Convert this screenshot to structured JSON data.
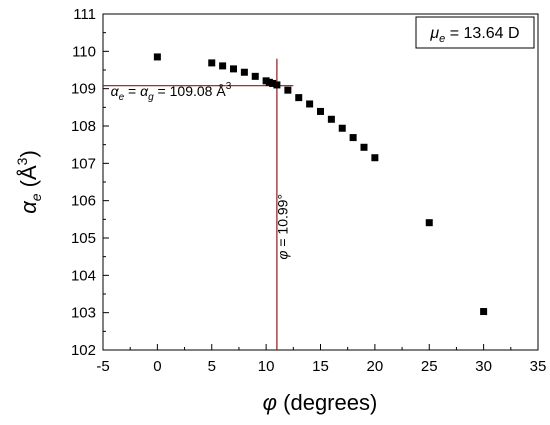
{
  "chart_data": {
    "type": "scatter",
    "title": "",
    "xlabel": {
      "symbol": "φ",
      "text": " (degrees)"
    },
    "ylabel": {
      "symbol": "α",
      "sub": "e",
      "text": " (Å",
      "sup": "3",
      "close": ")"
    },
    "xlim": [
      -5,
      35
    ],
    "ylim": [
      102,
      111
    ],
    "x_ticks": [
      -5,
      0,
      5,
      10,
      15,
      20,
      25,
      30,
      35
    ],
    "y_ticks": [
      102,
      103,
      104,
      105,
      106,
      107,
      108,
      109,
      110,
      111
    ],
    "grid": false,
    "series": [
      {
        "marker": "square",
        "color": "#000000",
        "x": [
          0,
          5,
          6,
          7,
          8,
          9,
          10,
          10.3,
          10.6,
          10.99,
          12,
          13,
          14,
          15,
          16,
          17,
          18,
          19,
          20,
          25,
          30
        ],
        "y": [
          109.85,
          109.69,
          109.61,
          109.53,
          109.44,
          109.33,
          109.21,
          109.17,
          109.14,
          109.1,
          108.96,
          108.76,
          108.59,
          108.39,
          108.18,
          107.94,
          107.69,
          107.43,
          107.15,
          105.41,
          103.03
        ]
      }
    ],
    "reference_lines": [
      {
        "orientation": "horizontal",
        "y": 109.08,
        "x_range": [
          -5,
          12.5
        ],
        "color": "#8b1a1a"
      },
      {
        "orientation": "vertical",
        "x": 10.99,
        "y_range": [
          102,
          109.8
        ],
        "color": "#8b1a1a"
      }
    ],
    "annotations": {
      "horizontal_line_label": {
        "sym1": "α",
        "sub1": "e",
        "mid": " = ",
        "sym2": "α",
        "sub2": "g",
        "value_text": " = 109.08 Å",
        "sup": "3",
        "x": -4.3,
        "y": 108.8
      },
      "vertical_line_label": {
        "sym": "φ",
        "text": " = 10.99°",
        "x": 11.95,
        "y": 105.3
      }
    },
    "legend": {
      "placement": "top-right",
      "sym": "μ",
      "sub": "e",
      "text": " = 13.64 D"
    }
  }
}
